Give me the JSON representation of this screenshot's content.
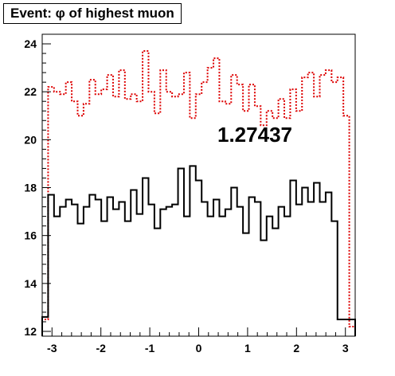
{
  "chart_data": {
    "type": "histogram",
    "title": "Event: φ of highest muon",
    "xlabel": "",
    "ylabel": "",
    "xlim": [
      -3.2,
      3.2
    ],
    "ylim": [
      11.8,
      24.4
    ],
    "grid": false,
    "x_ticks": [
      -3,
      -2,
      -1,
      0,
      1,
      2,
      3
    ],
    "y_ticks": [
      12,
      14,
      16,
      18,
      20,
      22,
      24
    ],
    "x_tick_labels": [
      "-3",
      "-2",
      "-1",
      "0",
      "1",
      "2",
      "3"
    ],
    "y_tick_labels": [
      "12",
      "14",
      "16",
      "18",
      "20",
      "22",
      "24"
    ],
    "bin_range": [
      -3.2,
      3.2
    ],
    "annotation": "1.27437",
    "series": [
      {
        "color": "#dd0000",
        "style": "dotted",
        "values": [
          12.5,
          22.2,
          22.0,
          21.9,
          22.4,
          21.6,
          21.0,
          21.5,
          22.5,
          21.9,
          22.1,
          22.7,
          21.8,
          22.9,
          21.7,
          21.9,
          21.6,
          23.7,
          22.0,
          21.1,
          22.9,
          22.0,
          21.8,
          21.9,
          22.8,
          20.9,
          21.9,
          22.4,
          23.0,
          23.4,
          21.6,
          21.5,
          22.7,
          22.3,
          21.2,
          22.3,
          21.4,
          20.6,
          21.2,
          20.9,
          21.7,
          20.9,
          22.1,
          21.2,
          22.6,
          22.8,
          21.8,
          22.7,
          22.9,
          22.4,
          22.6,
          21.0,
          12.2
        ]
      },
      {
        "color": "#000000",
        "style": "solid",
        "values": [
          12.6,
          17.7,
          16.8,
          17.2,
          17.5,
          17.3,
          16.5,
          17.2,
          17.7,
          17.5,
          16.6,
          17.6,
          17.1,
          17.4,
          16.6,
          17.9,
          16.9,
          18.4,
          17.3,
          16.3,
          17.1,
          17.2,
          17.3,
          18.8,
          16.8,
          18.9,
          18.3,
          17.4,
          16.8,
          17.5,
          16.8,
          17.1,
          18.0,
          17.2,
          16.1,
          17.6,
          17.4,
          15.8,
          16.8,
          16.3,
          17.2,
          16.8,
          18.3,
          17.3,
          18.0,
          17.4,
          18.2,
          17.4,
          17.8,
          16.6,
          12.5,
          12.5,
          12.5
        ]
      }
    ]
  }
}
